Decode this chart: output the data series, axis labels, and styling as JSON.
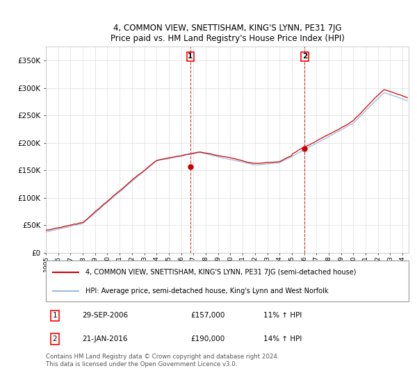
{
  "title": "4, COMMON VIEW, SNETTISHAM, KING'S LYNN, PE31 7JG",
  "subtitle": "Price paid vs. HM Land Registry's House Price Index (HPI)",
  "legend_line1": "4, COMMON VIEW, SNETTISHAM, KING'S LYNN, PE31 7JG (semi-detached house)",
  "legend_line2": "HPI: Average price, semi-detached house, King's Lynn and West Norfolk",
  "footer": "Contains HM Land Registry data © Crown copyright and database right 2024.\nThis data is licensed under the Open Government Licence v3.0.",
  "sale1_label": "1",
  "sale1_date": "29-SEP-2006",
  "sale1_price": "£157,000",
  "sale1_hpi": "11% ↑ HPI",
  "sale2_label": "2",
  "sale2_date": "21-JAN-2016",
  "sale2_price": "£190,000",
  "sale2_hpi": "14% ↑ HPI",
  "sale1_x": 2006.75,
  "sale2_x": 2016.05,
  "sale1_y": 157000,
  "sale2_y": 190000,
  "vline1_x": 2006.75,
  "vline2_x": 2016.05,
  "ylim": [
    0,
    375000
  ],
  "xlim_start": 1995.0,
  "xlim_end": 2024.5,
  "red_color": "#cc0000",
  "blue_color": "#99bbdd",
  "bg_color": "#ffffff",
  "grid_color": "#dddddd"
}
